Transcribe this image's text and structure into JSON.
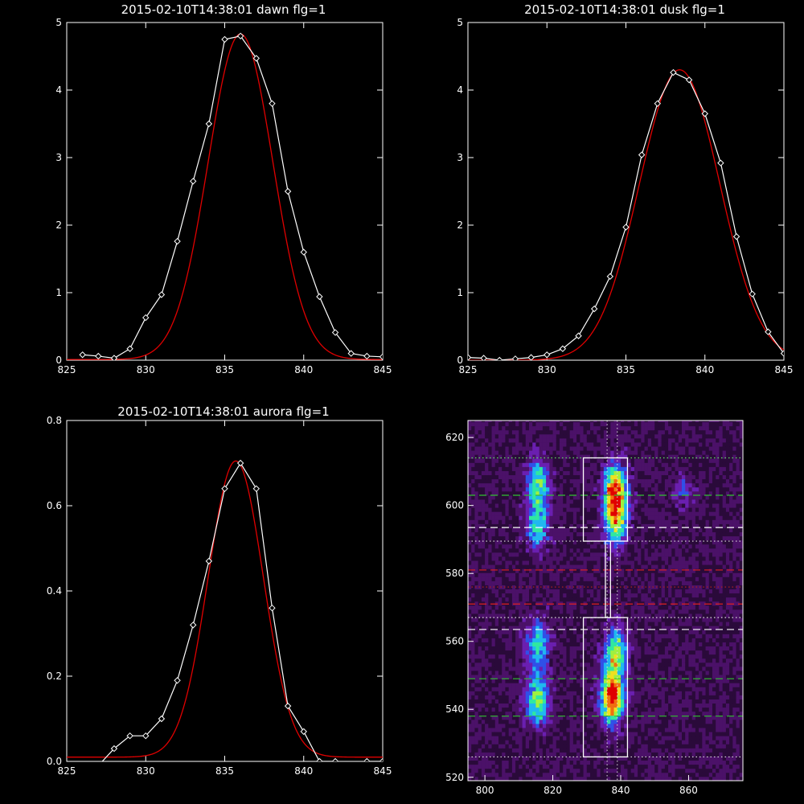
{
  "chart_data": [
    {
      "type": "line",
      "title": "2015-02-10T14:38:01 dawn flg=1",
      "xlim": [
        825,
        845
      ],
      "ylim": [
        0,
        5
      ],
      "xticks": [
        825,
        830,
        835,
        840,
        845
      ],
      "yticks": [
        0,
        1,
        2,
        3,
        4,
        5
      ],
      "series": [
        {
          "color": "#ffffff",
          "marker": "diamond",
          "x": [
            826,
            827,
            828,
            829,
            830,
            831,
            832,
            833,
            834,
            835,
            836,
            837,
            838,
            839,
            840,
            841,
            842,
            843,
            844,
            845
          ],
          "y": [
            0.08,
            0.06,
            0.03,
            0.17,
            0.63,
            0.97,
            1.76,
            2.65,
            3.5,
            4.75,
            4.8,
            4.47,
            3.8,
            2.5,
            1.6,
            0.94,
            0.41,
            0.1,
            0.06,
            0.05
          ]
        },
        {
          "color": "#e00000",
          "fit": "gaussian",
          "amplitude": 4.82,
          "center": 836.0,
          "sigma": 2.05,
          "offset": 0.01
        }
      ]
    },
    {
      "type": "line",
      "title": "2015-02-10T14:38:01 dusk flg=1",
      "xlim": [
        825,
        845
      ],
      "ylim": [
        0,
        5
      ],
      "xticks": [
        825,
        830,
        835,
        840,
        845
      ],
      "yticks": [
        0,
        1,
        2,
        3,
        4,
        5
      ],
      "series": [
        {
          "color": "#ffffff",
          "marker": "diamond",
          "x": [
            825,
            826,
            827,
            828,
            829,
            830,
            831,
            832,
            833,
            834,
            835,
            836,
            837,
            838,
            839,
            840,
            841,
            842,
            843,
            844,
            845
          ],
          "y": [
            0.04,
            0.03,
            0.0,
            0.02,
            0.04,
            0.08,
            0.17,
            0.36,
            0.76,
            1.24,
            1.97,
            3.04,
            3.8,
            4.26,
            4.15,
            3.65,
            2.92,
            1.83,
            0.98,
            0.42,
            0.1
          ]
        },
        {
          "color": "#e00000",
          "fit": "gaussian",
          "amplitude": 4.3,
          "center": 838.4,
          "sigma": 2.55,
          "offset": 0.0
        }
      ]
    },
    {
      "type": "line",
      "title": "2015-02-10T14:38:01 aurora flg=1",
      "xlim": [
        825,
        845
      ],
      "ylim": [
        0,
        0.8
      ],
      "xticks": [
        825,
        830,
        835,
        840,
        845
      ],
      "yticks": [
        0.0,
        0.2,
        0.4,
        0.6,
        0.8
      ],
      "ytick_labels": [
        "0.0",
        "0.2",
        "0.4",
        "0.6",
        "0.8"
      ],
      "series": [
        {
          "color": "#ffffff",
          "marker": "diamond",
          "x": [
            826,
            827,
            828,
            829,
            830,
            831,
            832,
            833,
            834,
            835,
            836,
            837,
            838,
            839,
            840,
            841,
            842,
            843,
            844,
            845
          ],
          "y": [
            -0.01,
            -0.01,
            0.03,
            0.06,
            0.06,
            0.1,
            0.19,
            0.32,
            0.47,
            0.64,
            0.7,
            0.64,
            0.36,
            0.13,
            0.07,
            0.0,
            0.0,
            -0.01,
            0.0,
            0.0
          ]
        },
        {
          "color": "#e00000",
          "fit": "gaussian",
          "amplitude": 0.695,
          "center": 835.7,
          "sigma": 1.75,
          "offset": 0.01
        }
      ]
    },
    {
      "type": "heatmap",
      "xlim": [
        795,
        876
      ],
      "ylim": [
        519,
        625
      ],
      "xticks": [
        800,
        820,
        840,
        860
      ],
      "yticks": [
        520,
        540,
        560,
        580,
        600,
        620
      ],
      "colormap": [
        "#000000",
        "#2a0a3a",
        "#4b1168",
        "#6a1fb0",
        "#3050e8",
        "#20b8f0",
        "#30e8a0",
        "#a0f040",
        "#f0e020",
        "#f07010",
        "#e00000"
      ],
      "background_level": 0.18,
      "sources": [
        {
          "x": 815,
          "y": 542,
          "sx": 2.3,
          "sy": 5.0,
          "amp": 0.55
        },
        {
          "x": 815,
          "y": 558,
          "sx": 2.3,
          "sy": 5.0,
          "amp": 0.45
        },
        {
          "x": 815,
          "y": 594,
          "sx": 2.3,
          "sy": 5.0,
          "amp": 0.42
        },
        {
          "x": 815,
          "y": 606,
          "sx": 2.3,
          "sy": 5.0,
          "amp": 0.45
        },
        {
          "x": 837,
          "y": 543,
          "sx": 2.3,
          "sy": 5.0,
          "amp": 0.95
        },
        {
          "x": 838,
          "y": 556,
          "sx": 2.3,
          "sy": 5.0,
          "amp": 0.55
        },
        {
          "x": 838,
          "y": 595,
          "sx": 2.3,
          "sy": 5.0,
          "amp": 0.6
        },
        {
          "x": 838,
          "y": 604,
          "sx": 2.3,
          "sy": 5.0,
          "amp": 0.8
        },
        {
          "x": 858,
          "y": 604,
          "sx": 2.3,
          "sy": 3.0,
          "amp": 0.18
        }
      ],
      "horizontal_lines": [
        {
          "y": 614,
          "color": "#60e060",
          "style": "dotted"
        },
        {
          "y": 603,
          "color": "#30c030",
          "style": "dashed"
        },
        {
          "y": 593.5,
          "color": "#ffffff",
          "style": "dashed"
        },
        {
          "y": 589.5,
          "color": "#dddddd",
          "style": "dotted"
        },
        {
          "y": 581,
          "color": "#e02020",
          "style": "dashed"
        },
        {
          "y": 576,
          "color": "#aa2020",
          "style": "dotted"
        },
        {
          "y": 571,
          "color": "#e02020",
          "style": "dashed"
        },
        {
          "y": 567,
          "color": "#dddddd",
          "style": "dotted"
        },
        {
          "y": 563.5,
          "color": "#ffffff",
          "style": "dashed"
        },
        {
          "y": 549,
          "color": "#30c030",
          "style": "dashed"
        },
        {
          "y": 538,
          "color": "#30c030",
          "style": "dashed"
        },
        {
          "y": 526,
          "color": "#dddddd",
          "style": "dotted"
        }
      ],
      "vertical_lines": [
        {
          "x": 836,
          "color": "#dddddd",
          "style": "dotted"
        },
        {
          "x": 839,
          "color": "#dddddd",
          "style": "dotted"
        }
      ],
      "boxes": [
        {
          "x": [
            829,
            842
          ],
          "y": [
            589.5,
            614
          ]
        },
        {
          "x": [
            829,
            842
          ],
          "y": [
            526,
            567
          ]
        },
        {
          "x": [
            835.5,
            837
          ],
          "y": [
            567,
            589.5
          ]
        }
      ]
    }
  ]
}
